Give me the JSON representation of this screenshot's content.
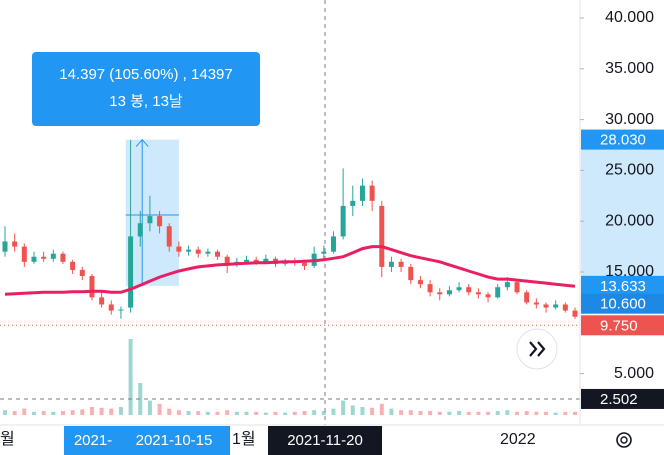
{
  "chart_data": {
    "type": "candlestick",
    "ylim": [
      0.43,
      41.77
    ],
    "yticks": [
      {
        "value": 40,
        "label": "40.000"
      },
      {
        "value": 35,
        "label": "35.000"
      },
      {
        "value": 30,
        "label": "30.000"
      },
      {
        "value": 25,
        "label": "25.000"
      },
      {
        "value": 20,
        "label": "20.000"
      },
      {
        "value": 15,
        "label": "15.000"
      },
      {
        "value": 5,
        "label": "5.000"
      }
    ],
    "ohlc": [
      [
        17,
        19.5,
        16.5,
        18
      ],
      [
        18,
        18.8,
        17,
        17.5
      ],
      [
        17.5,
        17.8,
        15.5,
        16
      ],
      [
        16,
        17,
        15.8,
        16.5
      ],
      [
        16.5,
        17,
        16,
        16.3
      ],
      [
        16.3,
        17.2,
        16,
        16.8
      ],
      [
        16.8,
        17,
        15.8,
        16
      ],
      [
        16,
        16.2,
        14.8,
        15.2
      ],
      [
        15.2,
        15.5,
        14.2,
        14.6
      ],
      [
        14.6,
        14.8,
        12.2,
        12.5
      ],
      [
        12.5,
        13,
        11.5,
        11.8
      ],
      [
        11.8,
        12.2,
        10.8,
        11.2
      ],
      [
        11.2,
        11.6,
        10.4,
        11.3
      ],
      [
        11.5,
        28,
        11,
        18.5
      ],
      [
        18.5,
        21,
        17.5,
        19.8
      ],
      [
        19.8,
        22.5,
        19,
        20.5
      ],
      [
        20.5,
        21,
        18.8,
        19.5
      ],
      [
        19.5,
        19.8,
        17,
        17.5
      ],
      [
        17.5,
        18,
        16.5,
        17
      ],
      [
        17,
        17.6,
        16.6,
        17.2
      ],
      [
        17.2,
        17.5,
        16.4,
        16.8
      ],
      [
        16.8,
        17.3,
        16.5,
        17
      ],
      [
        17,
        17.2,
        16.2,
        16.5
      ],
      [
        16.5,
        16.7,
        14.9,
        15.8
      ],
      [
        15.8,
        16.4,
        15.5,
        16
      ],
      [
        16,
        16.6,
        15.8,
        16.2
      ],
      [
        16.2,
        16.5,
        15.7,
        16
      ],
      [
        16,
        16.7,
        15.9,
        16.3
      ],
      [
        16.3,
        16.5,
        15.5,
        15.8
      ],
      [
        15.8,
        16.3,
        15.6,
        16
      ],
      [
        16,
        16.4,
        15.6,
        15.9
      ],
      [
        15.9,
        16.2,
        15.2,
        15.6
      ],
      [
        15.6,
        17.5,
        15.4,
        16.8
      ],
      [
        16.8,
        17.6,
        16.3,
        17
      ],
      [
        17,
        19,
        16.8,
        18.5
      ],
      [
        18.5,
        25.2,
        18.2,
        21.5
      ],
      [
        21.5,
        23.5,
        20.5,
        22
      ],
      [
        22,
        24.2,
        21.5,
        23.5
      ],
      [
        23.5,
        24,
        21,
        22
      ],
      [
        21.5,
        22,
        14.5,
        15.5
      ],
      [
        15.5,
        16.5,
        15,
        16
      ],
      [
        16,
        16.3,
        15,
        15.5
      ],
      [
        15.5,
        15.8,
        13.8,
        14.2
      ],
      [
        14.2,
        14.6,
        13.4,
        13.8
      ],
      [
        13.8,
        14.2,
        12.6,
        13
      ],
      [
        13,
        13.4,
        12.2,
        12.8
      ],
      [
        12.8,
        13.6,
        12.6,
        13.2
      ],
      [
        13.2,
        14,
        13,
        13.5
      ],
      [
        13.5,
        13.8,
        12.7,
        13
      ],
      [
        13,
        13.4,
        12.4,
        12.8
      ],
      [
        12.8,
        13,
        12,
        12.5
      ],
      [
        12.5,
        13.8,
        12.4,
        13.5
      ],
      [
        13.5,
        14.5,
        13.2,
        14
      ],
      [
        14,
        14.2,
        12.8,
        13
      ],
      [
        13,
        13.2,
        11.8,
        12
      ],
      [
        12,
        12.4,
        11.4,
        11.8
      ],
      [
        11.8,
        12,
        11,
        11.5
      ],
      [
        11.5,
        12.2,
        11.3,
        11.8
      ],
      [
        11.8,
        12,
        11,
        11.2
      ],
      [
        11.2,
        11.5,
        10.4,
        10.6
      ]
    ],
    "volume": [
      6,
      5,
      8,
      4,
      5,
      4,
      5,
      6,
      7,
      10,
      9,
      8,
      10,
      95,
      40,
      18,
      14,
      8,
      6,
      5,
      5,
      4,
      4,
      6,
      4,
      4,
      4,
      3,
      4,
      3,
      4,
      5,
      6,
      5,
      8,
      18,
      12,
      10,
      9,
      14,
      8,
      6,
      6,
      5,
      5,
      4,
      4,
      5,
      4,
      4,
      4,
      5,
      6,
      4,
      5,
      4,
      4,
      3,
      4,
      4
    ],
    "ma": {
      "color": "#e91e63",
      "values": [
        12.8,
        12.85,
        12.9,
        12.95,
        13,
        13,
        13,
        13.05,
        13.05,
        13.1,
        13.1,
        13.0,
        13.0,
        13.3,
        13.7,
        14.1,
        14.5,
        14.8,
        15.1,
        15.3,
        15.5,
        15.6,
        15.7,
        15.75,
        15.8,
        15.85,
        15.9,
        15.9,
        15.95,
        16,
        16,
        16.05,
        16.1,
        16.2,
        16.35,
        16.5,
        16.9,
        17.3,
        17.5,
        17.5,
        17.2,
        16.9,
        16.6,
        16.4,
        16.2,
        16,
        15.7,
        15.4,
        15.1,
        14.8,
        14.5,
        14.3,
        14.3,
        14.2,
        14.1,
        14,
        13.9,
        13.8,
        13.7,
        13.6
      ]
    },
    "up_color": "#26a69a",
    "down_color": "#ef5350",
    "price_badges": [
      {
        "value": 28.03,
        "label": "28.030",
        "color": "#2196f3"
      },
      {
        "value": 13.633,
        "label": "13.633",
        "color": "#2196f3"
      },
      {
        "value": 10.6,
        "label": "10.600",
        "color": "#1e88e5"
      },
      {
        "value": 9.75,
        "label": "9.750",
        "color": "#ef5350"
      },
      {
        "value": 2.502,
        "label": "2.502",
        "color": "#131722"
      }
    ],
    "measure": {
      "line1": "14.397 (105.60%) , 14397",
      "line2": "13 봉, 13날"
    },
    "time_labels": [
      "월",
      "2021-",
      "2021-10-15",
      "1월",
      "2021-11-20",
      "2022"
    ]
  }
}
